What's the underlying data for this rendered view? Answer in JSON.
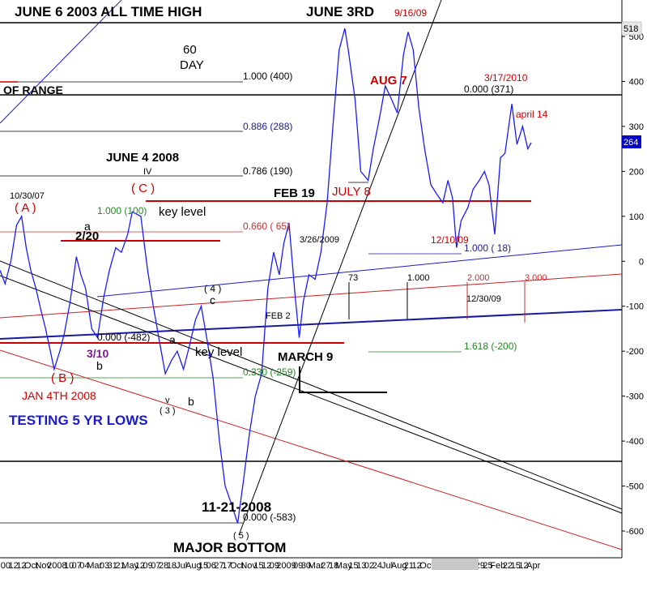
{
  "chart_data": {
    "type": "line",
    "title": "",
    "xlabel": "",
    "ylabel": "",
    "ylim": [
      -620,
      520
    ],
    "y_ticks": [
      500,
      400,
      300,
      200,
      100,
      0,
      -100,
      -200,
      -300,
      -400,
      -500,
      -600
    ],
    "y_tick_labels": [
      "500",
      "400",
      "300",
      "200",
      "100",
      "0",
      "-100",
      "-200",
      "-300",
      "-400",
      "-500",
      "-600"
    ],
    "x_tick_labels": [
      "00",
      "12",
      "12",
      "Oct",
      "Nov",
      "2008",
      "10",
      "07",
      "04",
      "Mar",
      "03",
      "31",
      "21",
      "May",
      "12",
      "09",
      "07",
      "28",
      "18",
      "Jul",
      "Aug",
      "15",
      "06",
      "27",
      "17",
      "Oct",
      "Nov",
      "15",
      "12",
      "09",
      "2009",
      "09",
      "30",
      "Mar",
      "27",
      "18",
      "May",
      "15",
      "13",
      "02",
      "24",
      "Jul",
      "Aug",
      "21",
      "12",
      "Oct",
      "12/09/09",
      "Dec",
      "29",
      "25",
      "Feb",
      "22",
      "15",
      "12",
      "Apr"
    ],
    "x_range": [
      "2007-10-01",
      "2010-04-20"
    ],
    "grid": false,
    "last_value_label": "264",
    "top_value_label": "518",
    "series": [
      {
        "color": "#1a1aff",
        "x": [
          "2007-10-01",
          "2007-10-10",
          "2007-10-20",
          "2007-10-30",
          "2007-11-08",
          "2007-11-16",
          "2007-11-24",
          "2007-12-03",
          "2007-12-12",
          "2007-12-20",
          "2008-01-04",
          "2008-01-14",
          "2008-01-22",
          "2008-02-01",
          "2008-02-12",
          "2008-02-20",
          "2008-02-28",
          "2008-03-10",
          "2008-03-20",
          "2008-03-31",
          "2008-04-10",
          "2008-04-21",
          "2008-05-01",
          "2008-05-12",
          "2008-05-20",
          "2008-06-04",
          "2008-06-16",
          "2008-06-26",
          "2008-07-07",
          "2008-07-17",
          "2008-07-28",
          "2008-08-07",
          "2008-08-18",
          "2008-08-28",
          "2008-09-08",
          "2008-09-18",
          "2008-09-29",
          "2008-10-09",
          "2008-10-20",
          "2008-10-30",
          "2008-11-10",
          "2008-11-21",
          "2008-12-01",
          "2008-12-12",
          "2008-12-22",
          "2009-01-02",
          "2009-01-13",
          "2009-01-23",
          "2009-02-02",
          "2009-02-10",
          "2009-02-19",
          "2009-03-02",
          "2009-03-09",
          "2009-03-16",
          "2009-03-26",
          "2009-04-06",
          "2009-04-16",
          "2009-04-27",
          "2009-05-07",
          "2009-05-18",
          "2009-05-28",
          "2009-06-03",
          "2009-06-15",
          "2009-06-25",
          "2009-07-08",
          "2009-07-17",
          "2009-07-28",
          "2009-08-07",
          "2009-08-18",
          "2009-08-28",
          "2009-09-08",
          "2009-09-16",
          "2009-09-25",
          "2009-10-05",
          "2009-10-15",
          "2009-10-26",
          "2009-11-05",
          "2009-11-16",
          "2009-11-25",
          "2009-12-03",
          "2009-12-10",
          "2009-12-18",
          "2009-12-30",
          "2010-01-08",
          "2010-01-19",
          "2010-01-28",
          "2010-02-05",
          "2010-02-15",
          "2010-02-25",
          "2010-03-05",
          "2010-03-17",
          "2010-03-26",
          "2010-04-05",
          "2010-04-14",
          "2010-04-20"
        ],
        "values": [
          -20,
          -50,
          0,
          80,
          100,
          30,
          -20,
          -60,
          -110,
          -150,
          -240,
          -200,
          -160,
          -90,
          10,
          -30,
          -60,
          -150,
          -170,
          -80,
          -20,
          30,
          20,
          60,
          110,
          100,
          -20,
          -100,
          -180,
          -250,
          -220,
          -200,
          -240,
          -190,
          -130,
          -100,
          -180,
          -260,
          -400,
          -500,
          -540,
          -583,
          -490,
          -380,
          -300,
          -250,
          -60,
          20,
          -30,
          40,
          85,
          -80,
          -170,
          -90,
          -30,
          -40,
          20,
          130,
          300,
          470,
          518,
          470,
          360,
          200,
          180,
          250,
          320,
          390,
          360,
          330,
          460,
          510,
          470,
          340,
          250,
          170,
          150,
          130,
          180,
          140,
          30,
          90,
          120,
          160,
          180,
          200,
          170,
          60,
          230,
          240,
          350,
          260,
          300,
          250,
          264
        ]
      }
    ],
    "annotations": {
      "june6": "JUNE 6 2003 ALL TIME HIGH",
      "june3": "JUNE 3RD",
      "sep16": "9/16/09",
      "day60": "60",
      "day60b": "DAY",
      "fib_1000_400": "1.000 (400)",
      "of_range": "OF RANGE",
      "aug7": "AUG 7",
      "mar17_2010": "3/17/2010",
      "fib_0000_371": "0.000 (371)",
      "april14": "april 14",
      "fib_0886": "0.886 (288)",
      "june4_2008": "JUNE 4 2008",
      "iv": "IV",
      "fib_0786": "0.786 (190)",
      "oct30_07": "10/30/07",
      "A": "( A )",
      "C": "( C )",
      "feb19": "FEB 19",
      "july8": "JULY 8",
      "a_top": "a",
      "fib_1000_100": "1.000 (100)",
      "key_level_top": "key level",
      "feb20": "2/20",
      "fib_0660": "0.660 ( 65)",
      "mar26_2009": "3/26/2009",
      "dec10_09": "12/10/09",
      "fib_1000_18": "1.000 ( 18)",
      "wave4": "( 4 )",
      "c_mid": "c",
      "n73": "73",
      "n1000": "1.000",
      "n2000": "2.000",
      "n3000": "3.000",
      "dec30_09": "12/30/09",
      "feb2": "FEB 2",
      "fib_0000_482": "0.000 (-482)",
      "a_mid": "a",
      "key_level_mid": "key level",
      "mar10": "3/10",
      "b_left": "b",
      "march9": "MARCH 9",
      "fib_1618": "1.618 (-200)",
      "B": "( B )",
      "fib_0330": "0.330 (-259)",
      "jan4_2008": "JAN 4TH 2008",
      "v": "v",
      "b_mid": "b",
      "w3": "( 3 )",
      "testing": "TESTING 5 YR LOWS",
      "nov21_2008": "11-21-2008",
      "fib_0000_583": "0.000 (-583)",
      "w5": "( 5 )",
      "major_bottom": "MAJOR BOTTOM"
    }
  }
}
